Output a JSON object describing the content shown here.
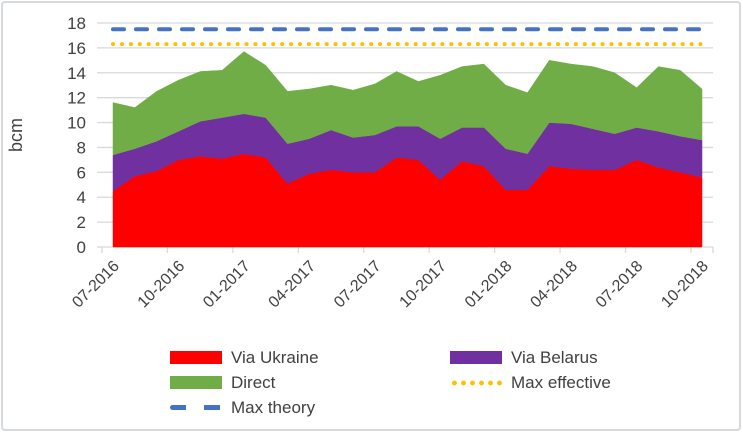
{
  "chart_data": {
    "type": "area",
    "subtype": "stacked-area",
    "title": "",
    "xlabel": "",
    "ylabel": "bcm",
    "ylim": [
      0,
      18
    ],
    "ytick_step": 2,
    "grid": true,
    "gridline_color": "#d9d9d9",
    "axis_text_color": "#404040",
    "x_categories": [
      "07-2016",
      "08-2016",
      "09-2016",
      "10-2016",
      "11-2016",
      "12-2016",
      "01-2017",
      "02-2017",
      "03-2017",
      "04-2017",
      "05-2017",
      "06-2017",
      "07-2017",
      "08-2017",
      "09-2017",
      "10-2017",
      "11-2017",
      "12-2017",
      "01-2018",
      "02-2018",
      "03-2018",
      "04-2018",
      "05-2018",
      "06-2018",
      "07-2018",
      "08-2018",
      "09-2018",
      "10-2018"
    ],
    "x_tick_labels_shown": [
      "07-2016",
      "10-2016",
      "01-2017",
      "04-2017",
      "07-2017",
      "10-2017",
      "01-2018",
      "04-2018",
      "07-2018",
      "10-2018"
    ],
    "x_label_every_n": 3,
    "series": [
      {
        "name": "Via Ukraine",
        "color": "#ff0000",
        "values": [
          4.5,
          5.7,
          6.1,
          7.0,
          7.3,
          7.1,
          7.5,
          7.2,
          5.1,
          5.9,
          6.2,
          6.0,
          6.0,
          7.2,
          7.0,
          5.4,
          6.9,
          6.5,
          4.6,
          4.6,
          6.5,
          6.3,
          6.2,
          6.2,
          7.0,
          6.4,
          6.0,
          5.6
        ]
      },
      {
        "name": "Via Belarus",
        "color": "#7030a0",
        "values": [
          2.9,
          2.2,
          2.4,
          2.3,
          2.8,
          3.3,
          3.2,
          3.2,
          3.2,
          2.8,
          3.2,
          2.8,
          3.0,
          2.5,
          2.7,
          3.3,
          2.7,
          3.1,
          3.3,
          2.9,
          3.5,
          3.6,
          3.3,
          2.9,
          2.6,
          2.9,
          2.9,
          3.0
        ]
      },
      {
        "name": "Direct",
        "color": "#70ad47",
        "values": [
          4.2,
          3.3,
          4.0,
          4.1,
          4.0,
          3.8,
          5.0,
          4.2,
          4.2,
          4.0,
          3.6,
          3.8,
          4.1,
          4.4,
          3.6,
          5.1,
          4.9,
          5.1,
          5.1,
          4.9,
          5.0,
          4.8,
          5.0,
          4.9,
          3.2,
          5.2,
          5.3,
          4.1
        ]
      }
    ],
    "reference_lines": [
      {
        "name": "Max effective",
        "value": 16.3,
        "style": "dotted",
        "color": "#ffc000"
      },
      {
        "name": "Max theory",
        "value": 17.5,
        "style": "dashed",
        "color": "#4472c4"
      }
    ],
    "legend": {
      "position": "bottom",
      "items": [
        {
          "label": "Via Ukraine",
          "type": "area",
          "color": "#ff0000"
        },
        {
          "label": "Via Belarus",
          "type": "area",
          "color": "#7030a0"
        },
        {
          "label": "Direct",
          "type": "area",
          "color": "#70ad47"
        },
        {
          "label": "Max effective",
          "type": "dotted",
          "color": "#ffc000"
        },
        {
          "label": "Max theory",
          "type": "dashed",
          "color": "#4472c4"
        }
      ]
    }
  }
}
